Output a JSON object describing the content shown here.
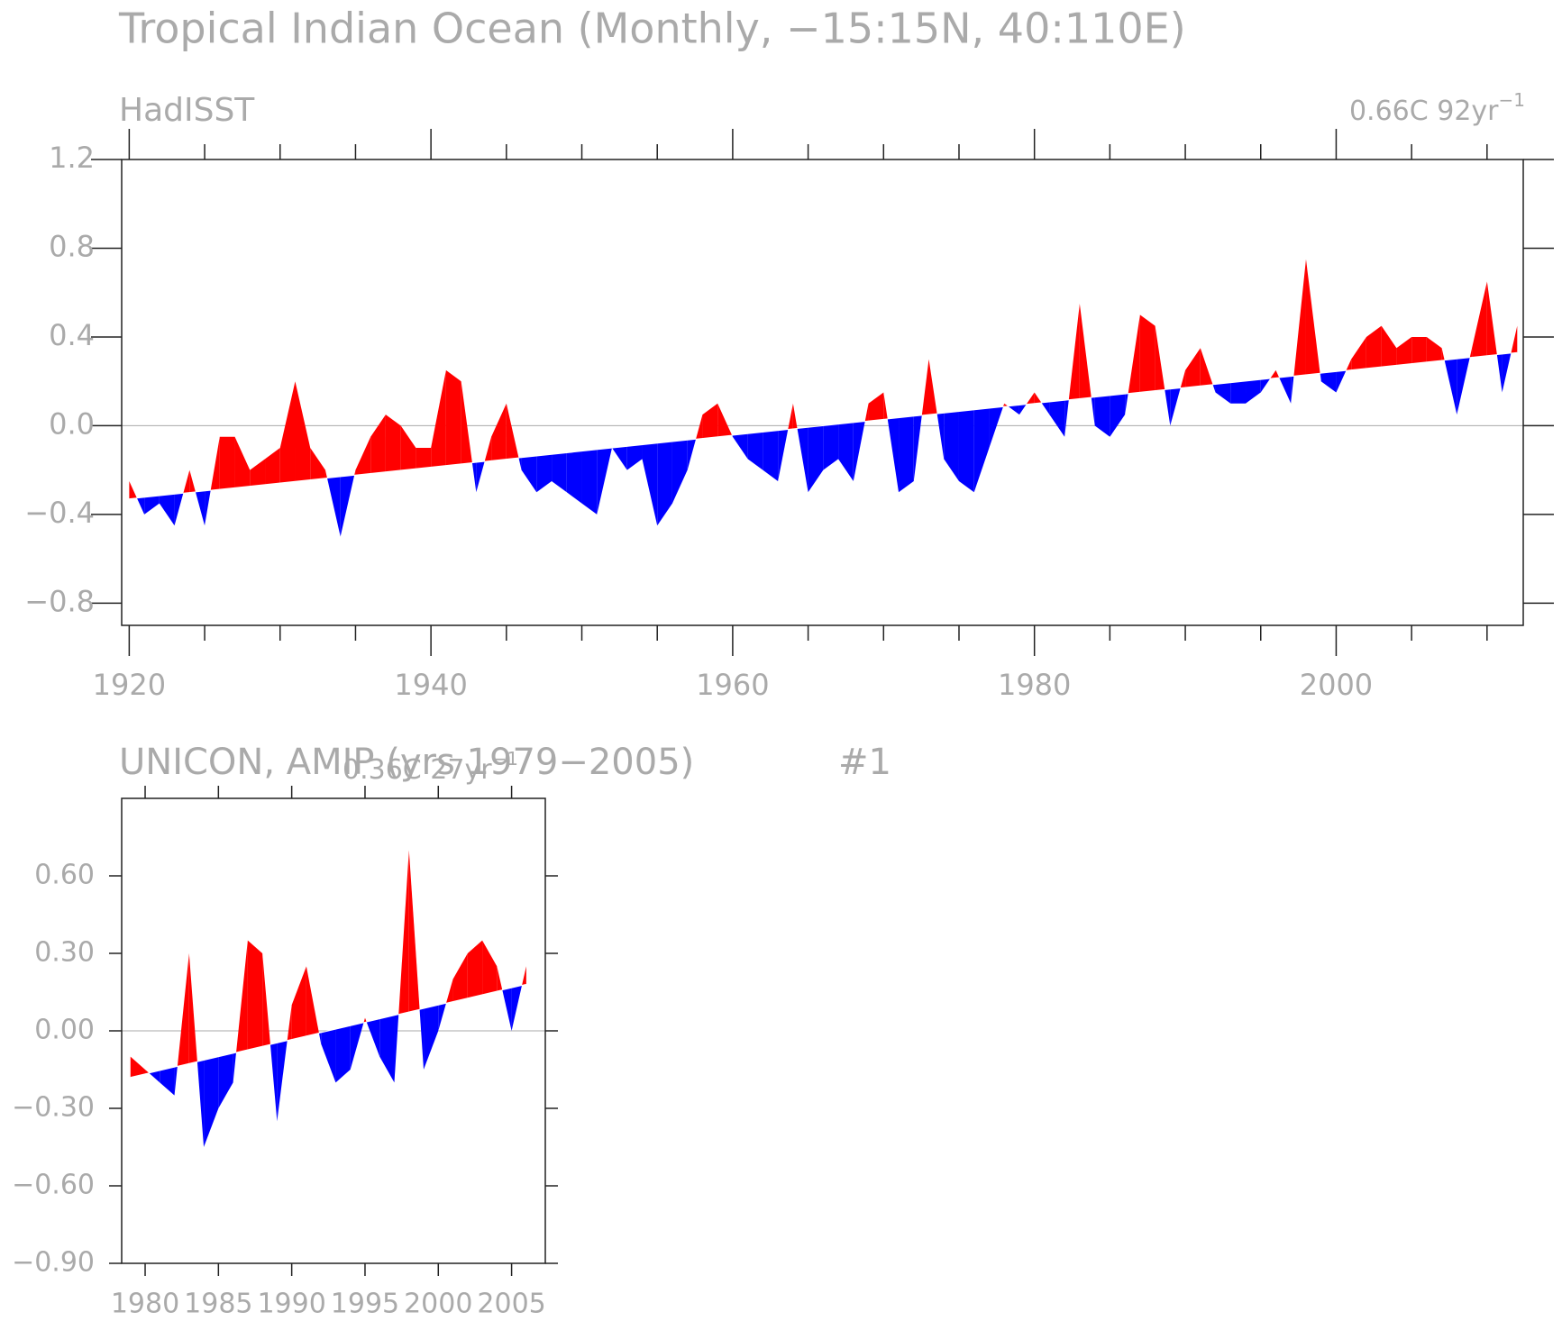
{
  "chart_data": [
    {
      "type": "area_trend",
      "title": "Tropical Indian Ocean (Monthly, −15:15N, 40:110E)",
      "subtitle": "HadISST",
      "trend_label": "0.66C 92yr",
      "trend_label_exponent": "−1",
      "above_color": "#ff0000",
      "below_color": "#0000ff",
      "x": [
        1920,
        1921,
        1922,
        1923,
        1924,
        1925,
        1926,
        1927,
        1928,
        1929,
        1930,
        1931,
        1932,
        1933,
        1934,
        1935,
        1936,
        1937,
        1938,
        1939,
        1940,
        1941,
        1942,
        1943,
        1944,
        1945,
        1946,
        1947,
        1948,
        1949,
        1950,
        1951,
        1952,
        1953,
        1954,
        1955,
        1956,
        1957,
        1958,
        1959,
        1960,
        1961,
        1962,
        1963,
        1964,
        1965,
        1966,
        1967,
        1968,
        1969,
        1970,
        1971,
        1972,
        1973,
        1974,
        1975,
        1976,
        1977,
        1978,
        1979,
        1980,
        1981,
        1982,
        1983,
        1984,
        1985,
        1986,
        1987,
        1988,
        1989,
        1990,
        1991,
        1992,
        1993,
        1994,
        1995,
        1996,
        1997,
        1998,
        1999,
        2000,
        2001,
        2002,
        2003,
        2004,
        2005,
        2006,
        2007,
        2008,
        2009,
        2010,
        2011,
        2012
      ],
      "values": [
        -0.25,
        -0.4,
        -0.35,
        -0.45,
        -0.2,
        -0.45,
        -0.05,
        -0.05,
        -0.2,
        -0.15,
        -0.1,
        0.2,
        -0.1,
        -0.2,
        -0.5,
        -0.2,
        -0.05,
        0.05,
        0.0,
        -0.1,
        -0.1,
        0.25,
        0.2,
        -0.3,
        -0.05,
        0.1,
        -0.2,
        -0.3,
        -0.25,
        -0.3,
        -0.35,
        -0.4,
        -0.1,
        -0.2,
        -0.15,
        -0.45,
        -0.35,
        -0.2,
        0.05,
        0.1,
        -0.05,
        -0.15,
        -0.2,
        -0.25,
        0.1,
        -0.3,
        -0.2,
        -0.15,
        -0.25,
        0.1,
        0.15,
        -0.3,
        -0.25,
        0.3,
        -0.15,
        -0.25,
        -0.3,
        -0.1,
        0.1,
        0.05,
        0.15,
        0.05,
        -0.05,
        0.55,
        0.0,
        -0.05,
        0.05,
        0.5,
        0.45,
        0.0,
        0.25,
        0.35,
        0.15,
        0.1,
        0.1,
        0.15,
        0.25,
        0.1,
        0.75,
        0.2,
        0.15,
        0.3,
        0.4,
        0.45,
        0.35,
        0.4,
        0.4,
        0.35,
        0.05,
        0.35,
        0.65,
        0.15,
        0.45
      ],
      "trend": {
        "x": [
          1920,
          2012
        ],
        "values": [
          -0.33,
          0.33
        ]
      },
      "xlim": [
        1919.5,
        2012.4
      ],
      "xticks": [
        1920,
        1940,
        1960,
        1980,
        2000
      ],
      "xminorticks": [
        1925,
        1930,
        1935,
        1945,
        1950,
        1955,
        1965,
        1970,
        1975,
        1985,
        1990,
        1995,
        2005,
        2010
      ],
      "ylim": [
        -0.9,
        1.2
      ],
      "yticks": [
        {
          "value": -0.8,
          "label": "−0.8"
        },
        {
          "value": -0.4,
          "label": "−0.4"
        },
        {
          "value": 0,
          "label": "0.0"
        },
        0.4,
        0.8,
        1.2
      ]
    },
    {
      "type": "area_trend",
      "subtitle": "UNICON, AMIP (yrs 1979−2005)",
      "run_label": "#1",
      "trend_label": "0.36C 27yr",
      "trend_label_exponent": "−1",
      "above_color": "#ff0000",
      "below_color": "#0000ff",
      "x": [
        1979,
        1980,
        1981,
        1982,
        1983,
        1984,
        1985,
        1986,
        1987,
        1988,
        1989,
        1990,
        1991,
        1992,
        1993,
        1994,
        1995,
        1996,
        1997,
        1998,
        1999,
        2000,
        2001,
        2002,
        2003,
        2004,
        2005,
        2006
      ],
      "values": [
        -0.1,
        -0.15,
        -0.2,
        -0.25,
        0.3,
        -0.45,
        -0.3,
        -0.2,
        0.35,
        0.3,
        -0.35,
        0.1,
        0.25,
        -0.05,
        -0.2,
        -0.15,
        0.05,
        -0.1,
        -0.2,
        0.7,
        -0.15,
        0.0,
        0.2,
        0.3,
        0.35,
        0.25,
        0.0,
        0.25
      ],
      "trend": {
        "x": [
          1979,
          2006
        ],
        "values": [
          -0.18,
          0.18
        ]
      },
      "xlim": [
        1978.4,
        2007.3
      ],
      "xticks": [
        1980,
        1985,
        1990,
        1995,
        2000,
        2005
      ],
      "ylim": [
        -0.9,
        0.9
      ],
      "yticks": [
        {
          "value": -0.9,
          "label": "−0.90"
        },
        {
          "value": -0.6,
          "label": "−0.60"
        },
        {
          "value": -0.3,
          "label": "−0.30"
        },
        {
          "value": 0,
          "label": "0.00"
        },
        {
          "value": 0.3,
          "label": "0.30"
        },
        {
          "value": 0.6,
          "label": "0.60"
        }
      ]
    }
  ]
}
